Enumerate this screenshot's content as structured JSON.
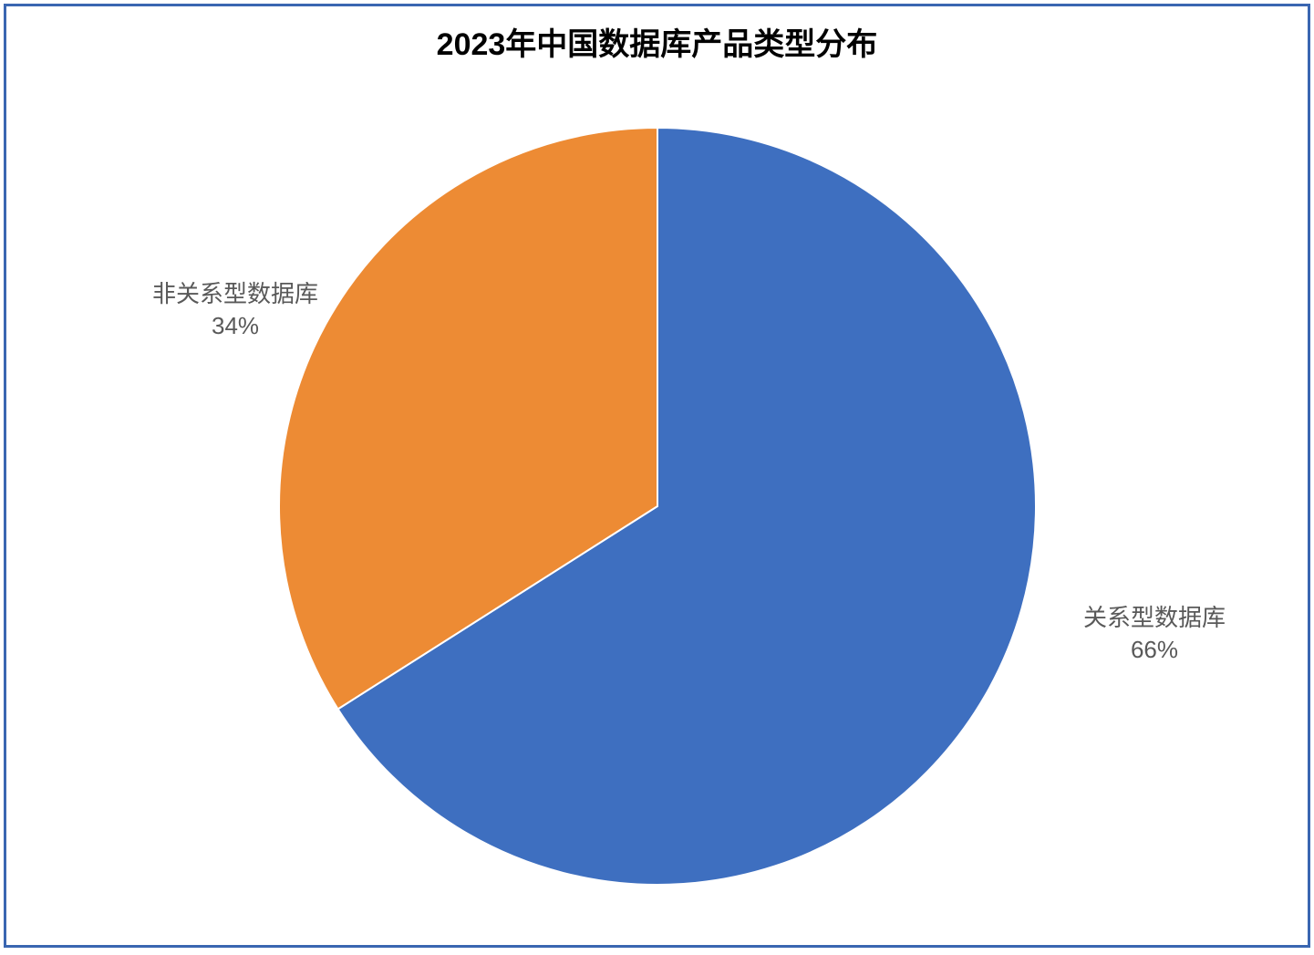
{
  "chart": {
    "type": "pie",
    "title": "2023年中国数据库产品类型分布",
    "title_fontsize": 34,
    "title_color": "#000000",
    "border_color": "#3a66b1",
    "background_color": "#ffffff",
    "label_fontsize": 26,
    "label_color": "#595959",
    "pie_radius": 415,
    "start_angle_deg": -90,
    "slices": [
      {
        "label": "关系型数据库",
        "value": 66,
        "percent_text": "66%",
        "color": "#3e6fc0"
      },
      {
        "label": "非关系型数据库",
        "value": 34,
        "percent_text": "34%",
        "color": "#ed8b34"
      }
    ]
  }
}
